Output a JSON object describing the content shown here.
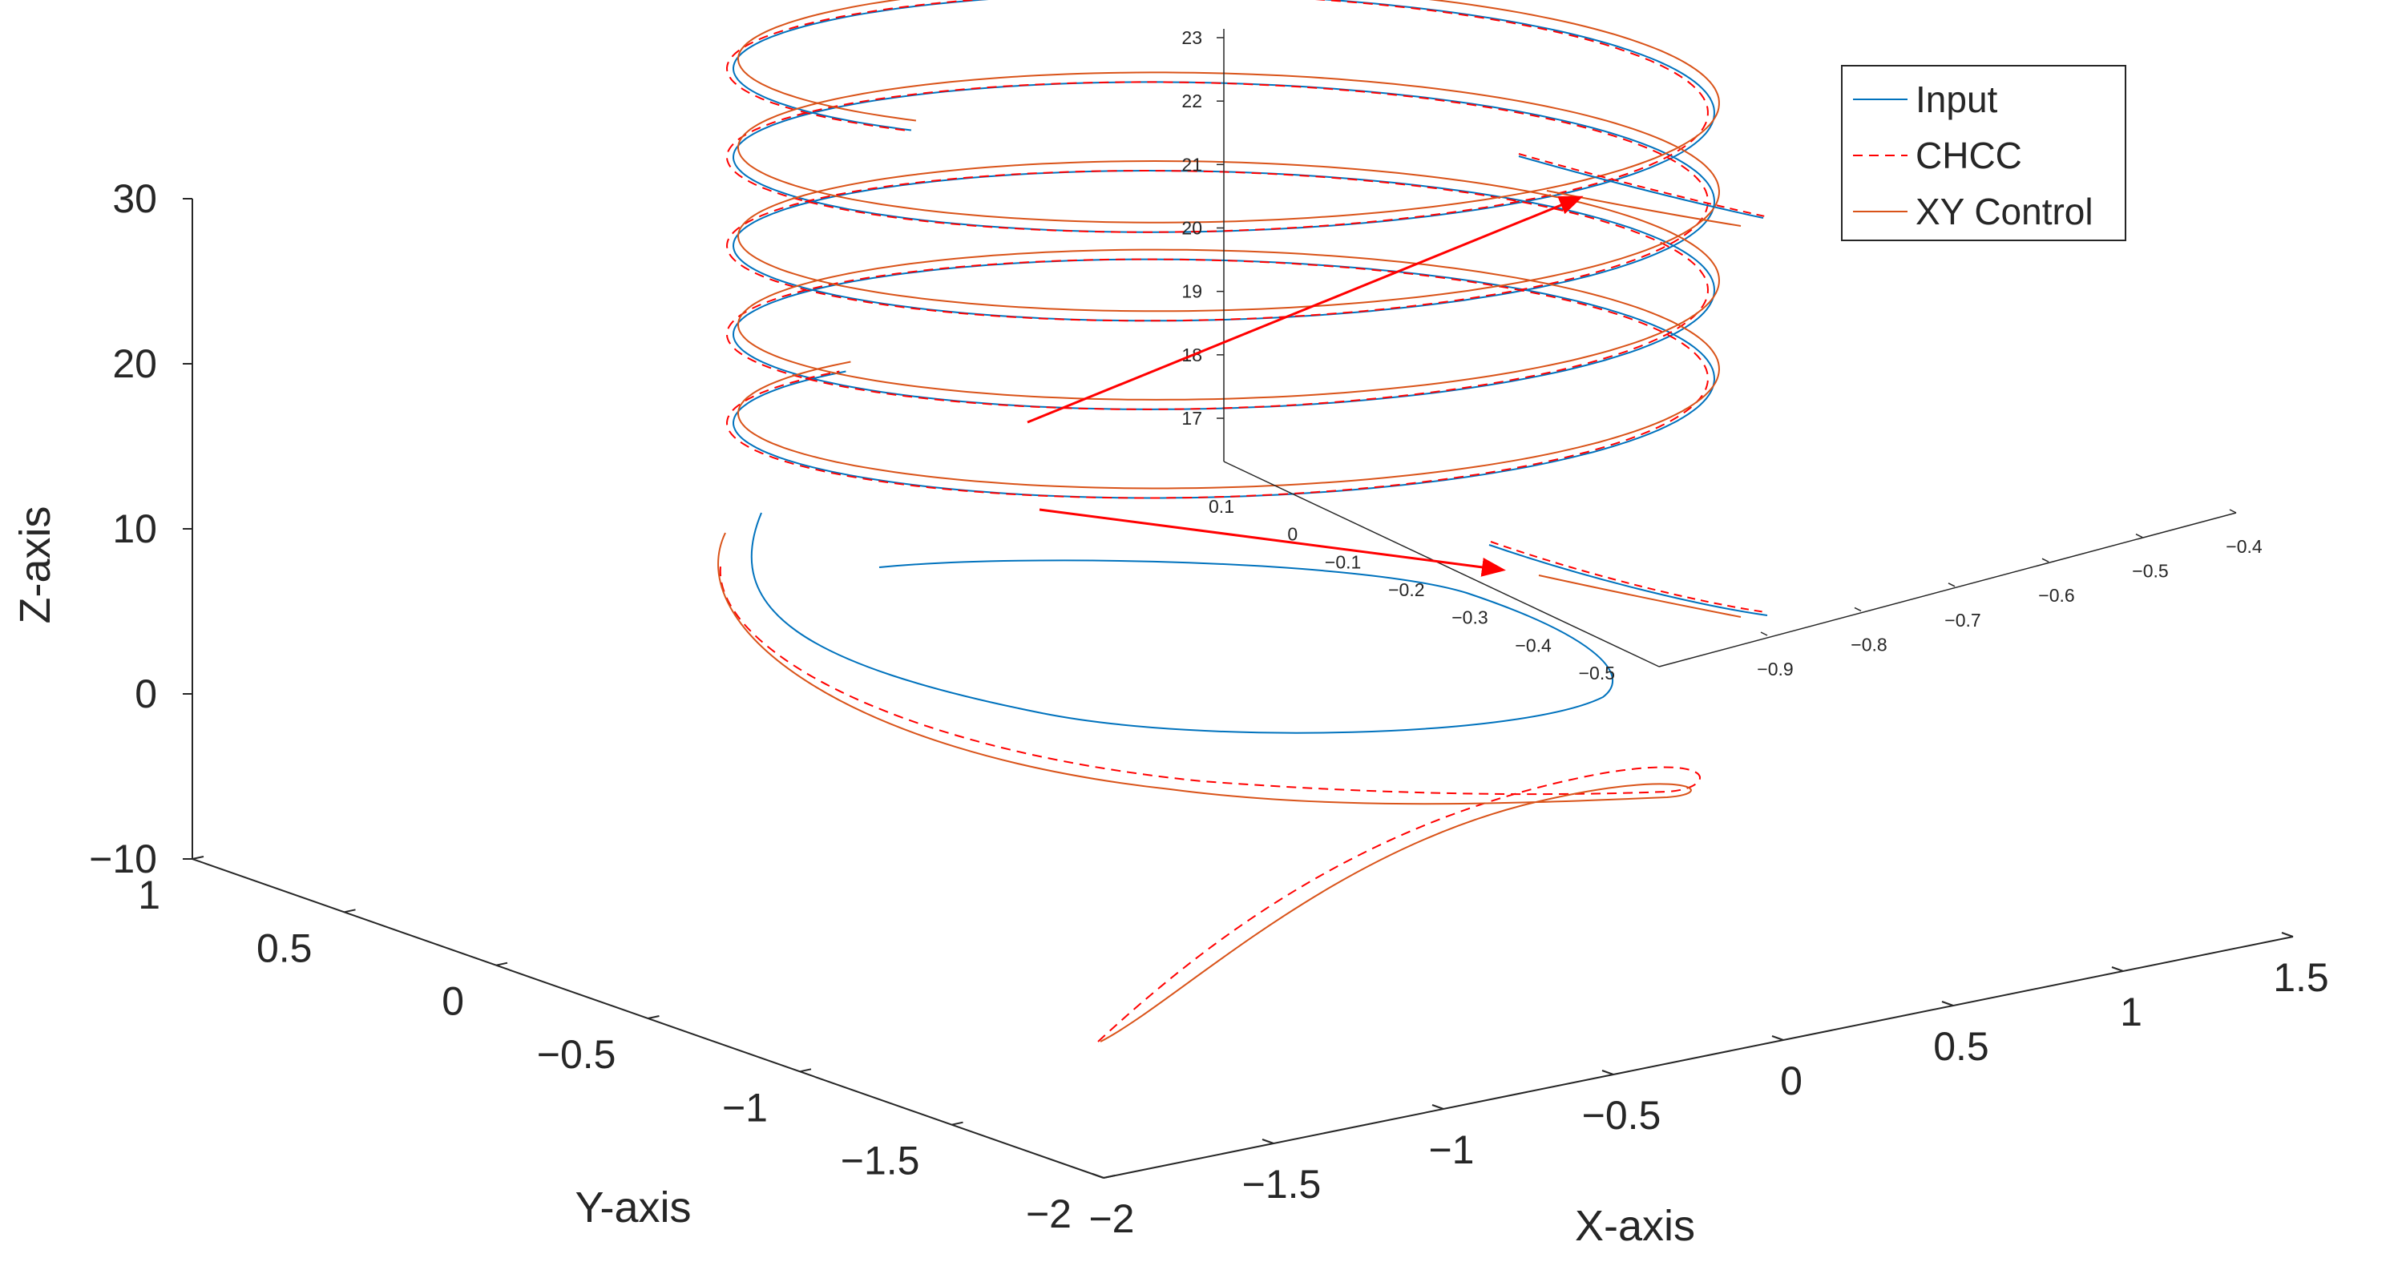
{
  "chart_data": {
    "type": "line",
    "title": "",
    "xlabel": "X-axis",
    "ylabel": "Y-axis",
    "zlabel": "Z-axis",
    "xlim": [
      -2,
      1.5
    ],
    "ylim": [
      -2,
      1
    ],
    "zlim": [
      -10,
      30
    ],
    "x_ticks": [
      "−2",
      "−1.5",
      "−1",
      "−0.5",
      "0",
      "0.5",
      "1",
      "1.5"
    ],
    "y_ticks": [
      "−2",
      "−1.5",
      "−1",
      "−0.5",
      "0",
      "0.5",
      "1"
    ],
    "z_ticks": [
      "−10",
      "0",
      "10",
      "20",
      "30"
    ],
    "legend": {
      "placement": "top-right"
    },
    "series": [
      {
        "name": "Input",
        "color": "#0072BD",
        "style": "solid",
        "description_points": {
          "z_start": 3,
          "turns": 4.5,
          "radius": 1
        }
      },
      {
        "name": "CHCC",
        "color": "#FF0000",
        "style": "dashed"
      },
      {
        "name": "XY Control",
        "color": "#D95319",
        "style": "solid"
      }
    ],
    "inset": {
      "z_ticks": [
        "17",
        "18",
        "19",
        "20",
        "21",
        "22",
        "23"
      ],
      "y_ticks": [
        "0.1",
        "0",
        "−0.1",
        "−0.2",
        "−0.3",
        "−0.4",
        "−0.5"
      ],
      "x_ticks": [
        "−0.9",
        "−0.8",
        "−0.7",
        "−0.6",
        "−0.5",
        "−0.4"
      ],
      "zlim": [
        17,
        23
      ],
      "ylim": [
        -0.5,
        0.1
      ],
      "xlim": [
        -0.9,
        -0.4
      ]
    }
  }
}
